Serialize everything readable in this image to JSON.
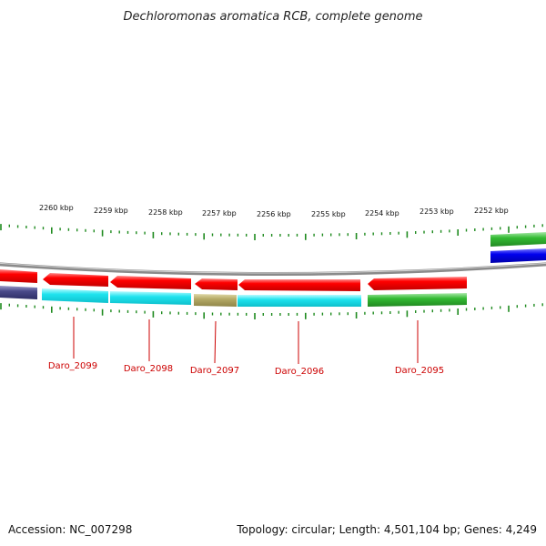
{
  "title": "Dechloromonas aromatica RCB, complete genome",
  "accession_text": "Accession: NC_007298",
  "summary_text": "Topology: circular; Length: 4,501,104 bp; Genes: 4,249",
  "colors": {
    "tick": "#1e8a1e",
    "backbone": "#8a8a8a",
    "gene_label": "#cc0000",
    "red": "#ee1111",
    "cyan": "#22e6ee",
    "green": "#33bb33",
    "olive": "#b5aa66",
    "blue": "#1111ee",
    "navy": "#4a4a8a"
  },
  "scale_labels": [
    {
      "kbp": 2260,
      "label": "2260 kbp"
    },
    {
      "kbp": 2259,
      "label": "2259 kbp"
    },
    {
      "kbp": 2258,
      "label": "2258 kbp"
    },
    {
      "kbp": 2257,
      "label": "2257 kbp"
    },
    {
      "kbp": 2256,
      "label": "2256 kbp"
    },
    {
      "kbp": 2255,
      "label": "2255 kbp"
    },
    {
      "kbp": 2254,
      "label": "2254 kbp"
    },
    {
      "kbp": 2253,
      "label": "2253 kbp"
    },
    {
      "kbp": 2252,
      "label": "2252 kbp"
    }
  ],
  "gene_labels": [
    {
      "id": "daro-2099",
      "label": "Daro_2099"
    },
    {
      "id": "daro-2098",
      "label": "Daro_2098"
    },
    {
      "id": "daro-2097",
      "label": "Daro_2097"
    },
    {
      "id": "daro-2096",
      "label": "Daro_2096"
    },
    {
      "id": "daro-2095",
      "label": "Daro_2095"
    }
  ]
}
